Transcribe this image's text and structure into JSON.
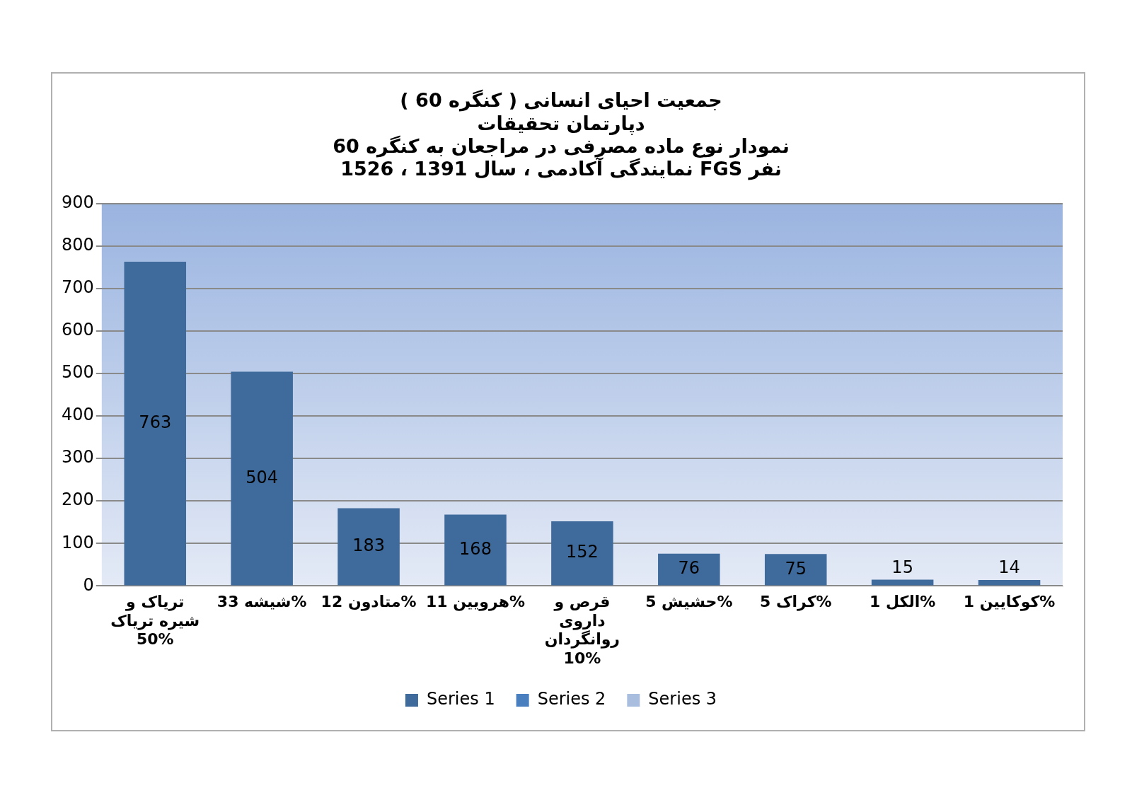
{
  "chart_data": {
    "type": "bar",
    "title": "جمعیت احیای انسانی ( کنگره 60 )",
    "subtitle": "دپارتمان تحقیقات\nنمودار نوع ماده مصرفی در مراجعان به کنگره 60\nنمایندگی آکادمی ، سال 1391 ، 1526 FGS نفر",
    "categories": [
      "تریاک و شیره تریاک 50%",
      "شیشه 33%",
      "متادون 12%",
      "هرویین 11%",
      "قرص و داروی روانگردان 10%",
      "حشیش 5%",
      "کراک 5%",
      "الکل 1%",
      "کوکایین 1%"
    ],
    "series": [
      {
        "name": "Series 1",
        "color": "#3f6a9c",
        "values": [
          763,
          504,
          183,
          168,
          152,
          76,
          75,
          15,
          14
        ]
      },
      {
        "name": "Series 2",
        "color": "#4a7fbf",
        "values": [
          null,
          null,
          null,
          null,
          null,
          null,
          null,
          null,
          null
        ]
      },
      {
        "name": "Series 3",
        "color": "#a9bedf",
        "values": [
          null,
          null,
          null,
          null,
          null,
          null,
          null,
          null,
          null
        ]
      }
    ],
    "ylim": [
      0,
      900
    ],
    "yticks": [
      0,
      100,
      200,
      300,
      400,
      500,
      600,
      700,
      800,
      900
    ],
    "grid": "y",
    "legend": "bottom",
    "data_labels": true
  }
}
